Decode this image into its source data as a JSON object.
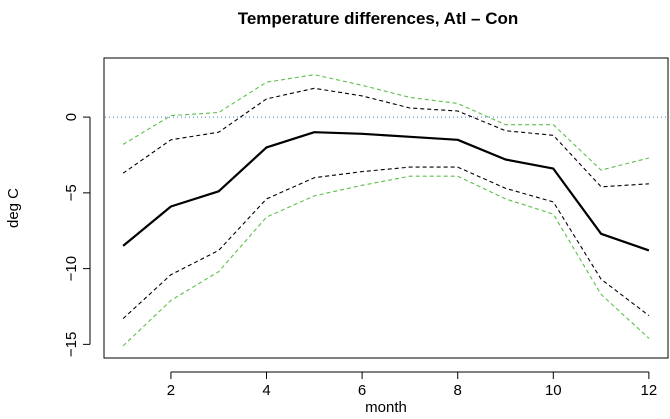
{
  "chart_data": {
    "type": "line",
    "title": "Temperature differences, Atl – Con",
    "xlabel": "month",
    "ylabel": "deg C",
    "x": [
      1,
      2,
      3,
      4,
      5,
      6,
      7,
      8,
      9,
      10,
      11,
      12
    ],
    "xticks": [
      2,
      4,
      6,
      8,
      10,
      12
    ],
    "yticks": [
      0,
      -5,
      -10,
      -15
    ],
    "xlim": [
      0.6,
      12.4
    ],
    "ylim": [
      -15.9,
      3.9
    ],
    "grid": false,
    "reference_line": {
      "y": 0,
      "color": "#3b7ec4",
      "style": "dotted"
    },
    "series": [
      {
        "role": "mean",
        "color": "#000000",
        "style": "solid",
        "values": [
          -8.5,
          -5.9,
          -4.9,
          -2.0,
          -1.0,
          -1.1,
          -1.3,
          -1.5,
          -2.8,
          -3.4,
          -7.7,
          -8.8
        ]
      },
      {
        "role": "inner-upper",
        "color": "#000000",
        "style": "dashed",
        "values": [
          -3.7,
          -1.5,
          -1.0,
          1.2,
          1.9,
          1.4,
          0.6,
          0.4,
          -0.9,
          -1.2,
          -4.6,
          -4.4
        ]
      },
      {
        "role": "inner-lower",
        "color": "#000000",
        "style": "dashed",
        "values": [
          -13.3,
          -10.4,
          -8.8,
          -5.4,
          -4.0,
          -3.6,
          -3.3,
          -3.3,
          -4.7,
          -5.6,
          -10.7,
          -13.1
        ]
      },
      {
        "role": "outer-upper",
        "color": "#5cbf4a",
        "style": "dashed",
        "values": [
          -1.8,
          0.1,
          0.3,
          2.3,
          2.8,
          2.1,
          1.3,
          0.9,
          -0.5,
          -0.5,
          -3.5,
          -2.7
        ]
      },
      {
        "role": "outer-lower",
        "color": "#5cbf4a",
        "style": "dashed",
        "values": [
          -15.1,
          -12.1,
          -10.2,
          -6.6,
          -5.2,
          -4.5,
          -3.9,
          -3.9,
          -5.4,
          -6.4,
          -11.7,
          -14.6
        ]
      }
    ]
  }
}
